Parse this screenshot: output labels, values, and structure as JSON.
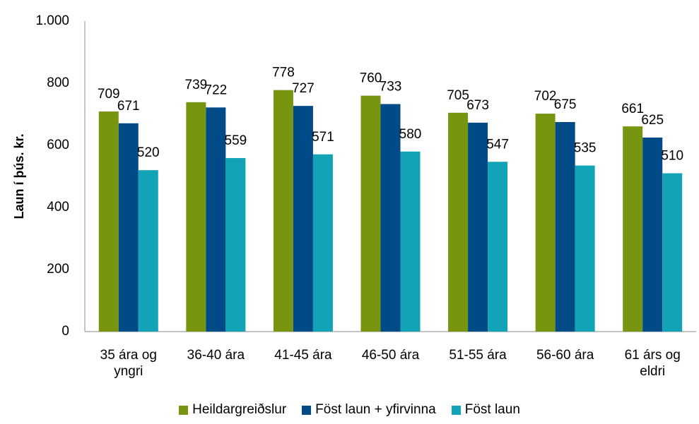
{
  "chart_data": {
    "type": "bar",
    "y_label": "Laun í þús. kr.",
    "categories": [
      "35 ára og yngri",
      "36-40 ára",
      "41-45 ára",
      "46-50 ára",
      "51-55 ára",
      "56-60 ára",
      "61 árs og eldri"
    ],
    "series": [
      {
        "name": "Heildargreiðslur",
        "color": "#77950f",
        "values": [
          709,
          739,
          778,
          760,
          705,
          702,
          661
        ]
      },
      {
        "name": "Föst laun + yfirvinna",
        "color": "#004b87",
        "values": [
          671,
          722,
          727,
          733,
          673,
          675,
          625
        ]
      },
      {
        "name": "Föst laun",
        "color": "#13a3b7",
        "values": [
          520,
          559,
          571,
          580,
          547,
          535,
          510
        ]
      }
    ],
    "ylim": [
      0,
      1000
    ],
    "yticks": [
      0,
      200,
      400,
      600,
      800,
      {
        "value": 1000,
        "label": "1.000"
      }
    ],
    "grid": false
  }
}
